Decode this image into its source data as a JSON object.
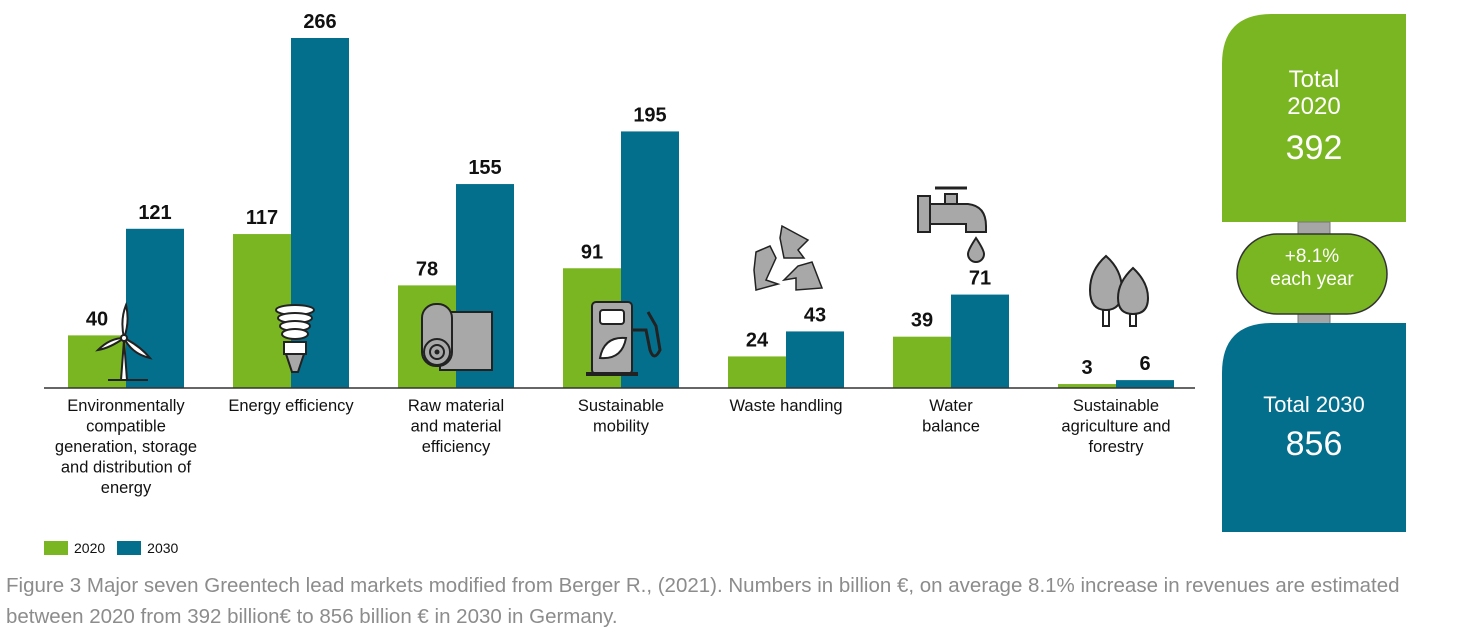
{
  "colors": {
    "c2020": "#7ab621",
    "c2030": "#046f8c",
    "axis": "#333333",
    "icon_gray": "#a8a8a8"
  },
  "chart_data": {
    "type": "bar",
    "categories": [
      [
        "Environmentally",
        "compatible",
        "generation, storage",
        "and distribution of",
        "energy"
      ],
      [
        "Energy efficiency"
      ],
      [
        "Raw material",
        "and material",
        "efficiency"
      ],
      [
        "Sustainable",
        "mobility"
      ],
      [
        "Waste handling"
      ],
      [
        "Water",
        "balance"
      ],
      [
        "Sustainable",
        "agriculture and",
        "forestry"
      ]
    ],
    "series": [
      {
        "name": "2020",
        "values": [
          40,
          117,
          78,
          91,
          24,
          39,
          3
        ]
      },
      {
        "name": "2030",
        "values": [
          121,
          266,
          155,
          195,
          43,
          71,
          6
        ]
      }
    ],
    "ylim": [
      0,
      266
    ],
    "icons": [
      "wind-turbine-icon",
      "light-bulb-icon",
      "paper-roll-icon",
      "charging-station-icon",
      "recycle-icon",
      "water-tap-icon",
      "trees-icon"
    ],
    "legend": [
      "2020",
      "2030"
    ],
    "grid": false
  },
  "summary": {
    "total_2020_label": "Total",
    "total_2020_year": "2020",
    "total_2020_value": "392",
    "growth_line1": "+8.1%",
    "growth_line2": "each year",
    "total_2030_label": "Total 2030",
    "total_2030_value": "856"
  },
  "caption": "Figure 3 Major seven Greentech lead markets modified from Berger R., (2021). Numbers in billion €, on average 8.1% increase in revenues are estimated between 2020 from 392 billion€ to 856 billion € in 2030 in Germany."
}
